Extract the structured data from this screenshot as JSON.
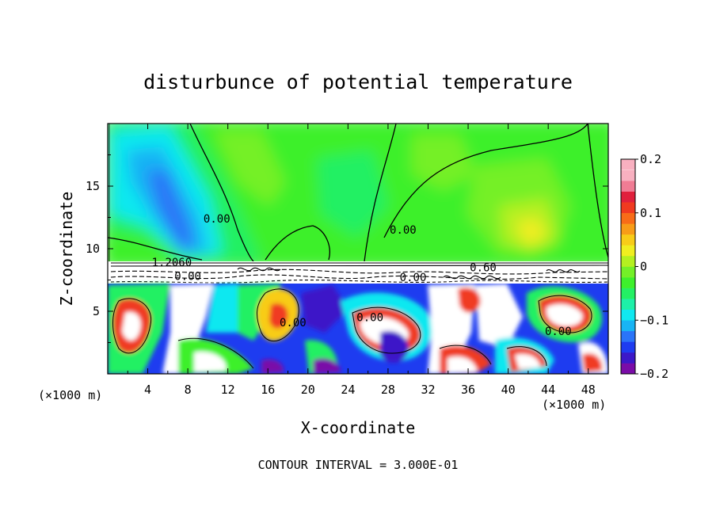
{
  "chart_data": {
    "type": "heatmap",
    "title": "disturbunce of potential temperature",
    "xlabel": "X-coordinate",
    "ylabel": "Z-coordinate",
    "x_unit_left": "(×1000 m)",
    "x_unit_right": "(×1000 m)",
    "footer": "CONTOUR INTERVAL = 3.000E-01",
    "xlim": [
      0,
      50
    ],
    "ylim": [
      0,
      20
    ],
    "x_ticks": [
      4,
      8,
      12,
      16,
      20,
      24,
      28,
      32,
      36,
      40,
      44,
      48
    ],
    "y_ticks": [
      5,
      10,
      15
    ],
    "colorbar": {
      "range": [
        -0.2,
        0.2
      ],
      "tick_values": [
        0.2,
        0.1,
        0,
        -0.1,
        -0.2
      ],
      "tick_labels": [
        "0.2",
        "0.1",
        "0",
        "−0.1",
        "−0.2"
      ],
      "colors": [
        "#7a0ca8",
        "#3c18c8",
        "#1e3cf0",
        "#2a74f8",
        "#18b4f4",
        "#10e8f0",
        "#1ef0a8",
        "#24f064",
        "#3ef02c",
        "#74f028",
        "#b4f020",
        "#f0ee20",
        "#f8cc18",
        "#f89c18",
        "#f86c18",
        "#f03a20",
        "#e0203c",
        "#f07c94",
        "#f8b0c0",
        "#ffffff"
      ]
    },
    "contour_labels": [
      {
        "text": "0.00",
        "x": 10.9,
        "z": 12.1
      },
      {
        "text": "0.00",
        "x": 29.5,
        "z": 11.2
      },
      {
        "text": "0.60",
        "x": 37.5,
        "z": 8.2
      },
      {
        "text": "0.00",
        "x": 8.0,
        "z": 7.5
      },
      {
        "text": "0.00",
        "x": 30.5,
        "z": 7.4
      },
      {
        "text": "0.00",
        "x": 18.5,
        "z": 3.8
      },
      {
        "text": "0.00",
        "x": 26.2,
        "z": 4.2
      },
      {
        "text": "0.00",
        "x": 45.0,
        "z": 3.1
      },
      {
        "text": "1.2060",
        "x": 6.4,
        "z": 8.6
      }
    ]
  }
}
